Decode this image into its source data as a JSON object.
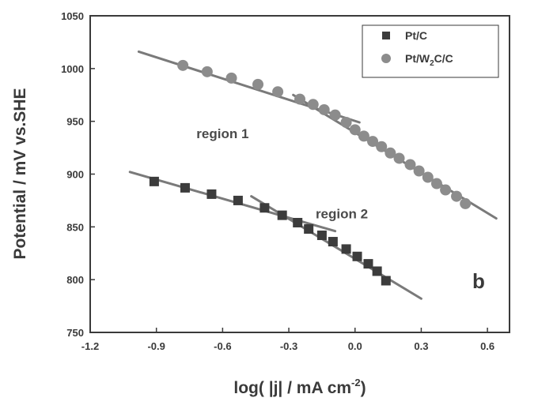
{
  "chart_data": {
    "type": "scatter",
    "xlabel": "log( |j| / mA cm-2)",
    "ylabel": "Potential / mV vs.SHE",
    "xlim": [
      -1.2,
      0.7
    ],
    "ylim": [
      750,
      1050
    ],
    "x_ticks": [
      -1.2,
      -0.9,
      -0.6,
      -0.3,
      0.0,
      0.3,
      0.6
    ],
    "x_tick_labels": [
      "-1.2",
      "-0.9",
      "-0.6",
      "-0.3",
      "0.0",
      "0.3",
      "0.6"
    ],
    "y_ticks": [
      750,
      800,
      850,
      900,
      950,
      1000,
      1050
    ],
    "y_tick_labels": [
      "750",
      "800",
      "850",
      "900",
      "950",
      "1000",
      "1050"
    ],
    "grid": false,
    "legend_position": "top-right",
    "series": [
      {
        "name": "Pt/C",
        "marker": "square",
        "color": "#3c3c3c",
        "x": [
          -0.91,
          -0.77,
          -0.65,
          -0.53,
          -0.41,
          -0.33,
          -0.26,
          -0.21,
          -0.15,
          -0.1,
          -0.04,
          0.01,
          0.06,
          0.1,
          0.14
        ],
        "y": [
          893,
          887,
          881,
          875,
          868,
          861,
          854,
          848,
          842,
          836,
          829,
          822,
          815,
          808,
          799
        ]
      },
      {
        "name": "Pt/W2C/C",
        "legend_parts": [
          "Pt/W",
          "2",
          "C/C"
        ],
        "marker": "circle",
        "color": "#8c8c8c",
        "x": [
          -0.78,
          -0.67,
          -0.56,
          -0.44,
          -0.35,
          -0.25,
          -0.19,
          -0.14,
          -0.09,
          -0.04,
          0.0,
          0.04,
          0.08,
          0.12,
          0.16,
          0.2,
          0.25,
          0.29,
          0.33,
          0.37,
          0.41,
          0.46,
          0.5
        ],
        "y": [
          1003,
          997,
          991,
          985,
          978,
          971,
          966,
          961,
          956,
          949,
          942,
          936,
          931,
          926,
          920,
          915,
          909,
          903,
          897,
          891,
          885,
          879,
          872
        ]
      }
    ],
    "fit_lines": [
      {
        "x": [
          -0.98,
          0.02
        ],
        "y": [
          1016,
          949
        ]
      },
      {
        "x": [
          -0.28,
          0.64
        ],
        "y": [
          975,
          858
        ]
      },
      {
        "x": [
          -1.02,
          -0.09
        ],
        "y": [
          902,
          846
        ]
      },
      {
        "x": [
          -0.47,
          0.3
        ],
        "y": [
          879,
          782
        ]
      }
    ],
    "annotations": [
      {
        "text": "region 1",
        "x": -0.6,
        "y": 934
      },
      {
        "text": "region 2",
        "x": -0.06,
        "y": 858
      }
    ],
    "panel_label": "b"
  }
}
